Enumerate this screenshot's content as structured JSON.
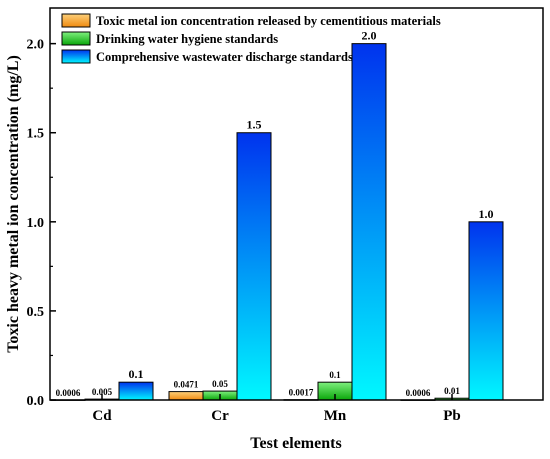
{
  "chart_data": {
    "type": "bar",
    "categories": [
      "Cd",
      "Cr",
      "Mn",
      "Pb"
    ],
    "series": [
      {
        "name": "Toxic metal ion concentration released by cementitious materials",
        "values": [
          0.0006,
          0.0471,
          0.0017,
          0.0006
        ],
        "labels": [
          "0.0006",
          "0.0471",
          "0.0017",
          "0.0006"
        ]
      },
      {
        "name": "Drinking water hygiene standards",
        "values": [
          0.005,
          0.05,
          0.1,
          0.01
        ],
        "labels": [
          "0.005",
          "0.05",
          "0.1",
          "0.01"
        ]
      },
      {
        "name": "Comprehensive wastewater discharge standards",
        "values": [
          0.1,
          1.5,
          2.0,
          1.0
        ],
        "labels": [
          "0.1",
          "1.5",
          "2.0",
          "1.0"
        ]
      }
    ],
    "yticks": [
      "0.0",
      "0.5",
      "1.0",
      "1.5",
      "2.0"
    ],
    "xlabel": "Test elements",
    "ylabel": "Toxic heavy metal ion concentration (mg/L)",
    "ylim": [
      0,
      2.2
    ],
    "legend_position": "top-left",
    "colors": {
      "series_1": [
        "#fcd07a",
        "#f08a10"
      ],
      "series_2": [
        "#7ef07e",
        "#0aa60a"
      ],
      "series_3_gradient": [
        "#00f8ff",
        "#0033ee"
      ]
    }
  }
}
